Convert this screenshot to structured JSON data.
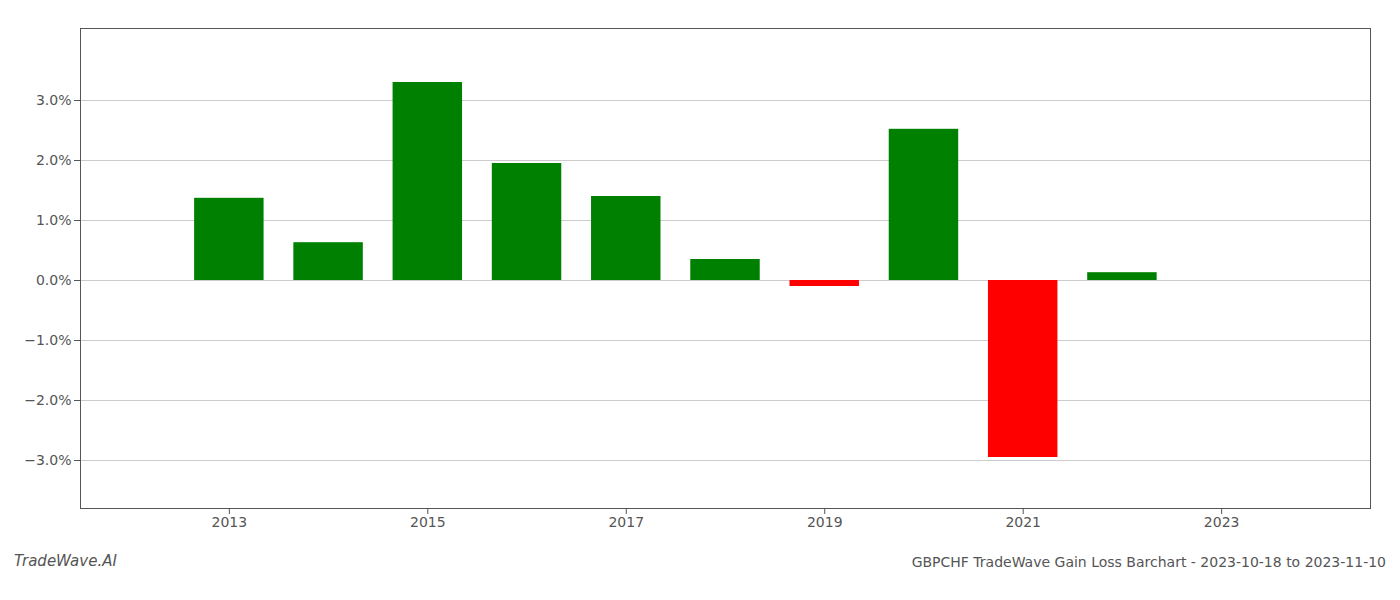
{
  "chart_data": {
    "type": "bar",
    "x": [
      2013,
      2014,
      2015,
      2016,
      2017,
      2018,
      2019,
      2020,
      2021,
      2022
    ],
    "values": [
      0.0137,
      0.0063,
      0.033,
      0.0195,
      0.014,
      0.0035,
      -0.001,
      0.0252,
      -0.0295,
      0.0013
    ],
    "colors": [
      "#008000",
      "#008000",
      "#008000",
      "#008000",
      "#008000",
      "#008000",
      "#ff0000",
      "#008000",
      "#ff0000",
      "#008000"
    ],
    "xlim": [
      2011.5,
      2024.5
    ],
    "ylim": [
      -0.038,
      0.042
    ],
    "xticks": [
      2013,
      2015,
      2017,
      2019,
      2021,
      2023
    ],
    "yticks": [
      {
        "value": -0.03,
        "label": "−3.0%"
      },
      {
        "value": -0.02,
        "label": "−2.0%"
      },
      {
        "value": -0.01,
        "label": "−1.0%"
      },
      {
        "value": 0.0,
        "label": "0.0%"
      },
      {
        "value": 0.01,
        "label": "1.0%"
      },
      {
        "value": 0.02,
        "label": "2.0%"
      },
      {
        "value": 0.03,
        "label": "3.0%"
      }
    ],
    "grid": true,
    "annotations": [
      "TradeWave.AI",
      "GBPCHF TradeWave Gain Loss Barchart - 2023-10-18 to 2023-11-10"
    ]
  }
}
